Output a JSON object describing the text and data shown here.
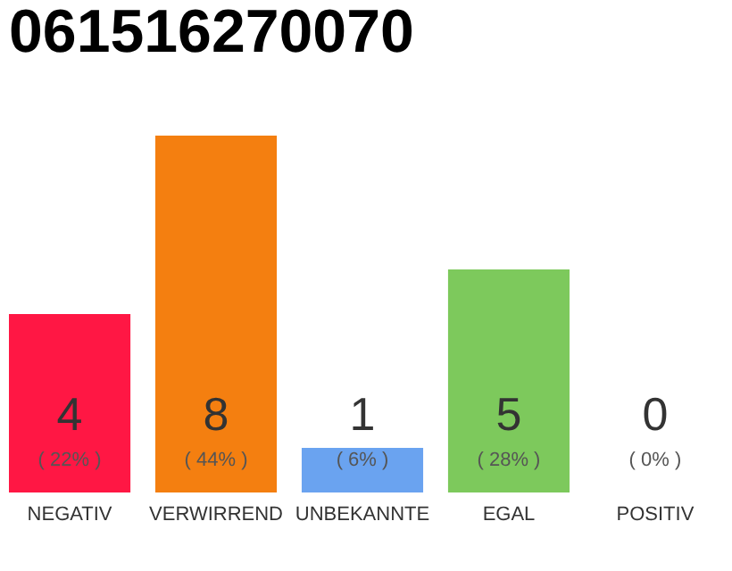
{
  "chart_data": {
    "type": "bar",
    "title": "061516270070",
    "categories": [
      "NEGATIV",
      "VERWIRREND",
      "UNBEKANNTE",
      "EGAL",
      "POSITIV"
    ],
    "values": [
      4,
      8,
      1,
      5,
      0
    ],
    "colors": [
      "#ff1744",
      "#f47f10",
      "#6aa3f0",
      "#7dc95c",
      "#bdbdbd"
    ],
    "data_labels": true,
    "annotations": [
      "( 22% )",
      "( 44% )",
      "( 6% )",
      "( 28% )",
      "( 0% )"
    ],
    "grid": false
  }
}
